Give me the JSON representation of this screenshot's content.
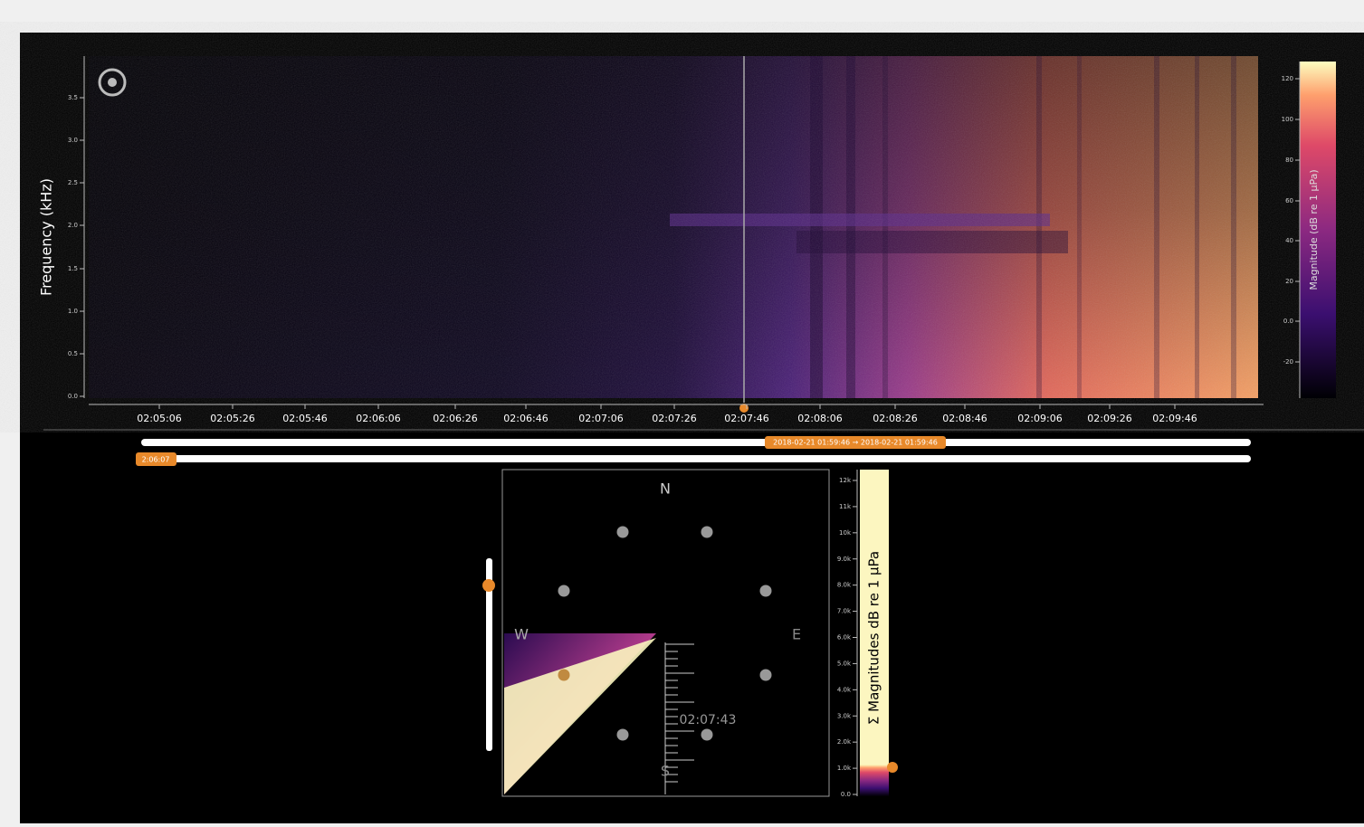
{
  "spectrogram": {
    "y_label": "Frequency (kHz)",
    "y_ticks": [
      "3.5",
      "3.0",
      "2.5",
      "2.0",
      "1.5",
      "1.0",
      "0.5",
      "0.0"
    ],
    "x_ticks": [
      "02:05:06",
      "02:05:26",
      "02:05:46",
      "02:06:06",
      "02:06:26",
      "02:06:46",
      "02:07:06",
      "02:07:26",
      "02:07:46",
      "02:08:06",
      "02:08:26",
      "02:08:46",
      "02:09:06",
      "02:09:26",
      "02:09:46"
    ],
    "colorbar": {
      "label": "Magnitude (dB re 1 µPa)",
      "ticks": [
        "120",
        "100",
        "80",
        "60",
        "40",
        "20",
        "0.0",
        "-20"
      ]
    }
  },
  "time_slider": {
    "range_label": "2018-02-21 01:59:46 → 2018-02-21 01:59:46",
    "handle_label": "2:06:07"
  },
  "polar": {
    "compass": {
      "north": "N",
      "east": "E",
      "south": "S",
      "west": "W"
    },
    "time_label": "02:07:43",
    "colorbar": {
      "label": "Σ Magnitudes dB re 1 µPa",
      "ticks": [
        "12k",
        "11k",
        "10k",
        "9.0k",
        "8.0k",
        "7.0k",
        "6.0k",
        "5.0k",
        "4.0k",
        "3.0k",
        "2.0k",
        "1.0k",
        "0.0"
      ]
    }
  }
}
